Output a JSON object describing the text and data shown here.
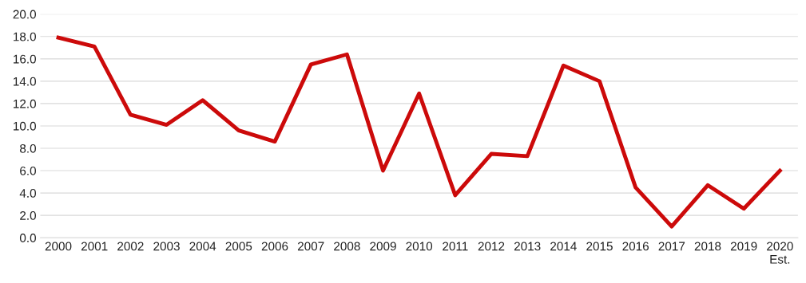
{
  "chart_data": {
    "type": "line",
    "categories": [
      "2000",
      "2001",
      "2002",
      "2003",
      "2004",
      "2005",
      "2006",
      "2007",
      "2008",
      "2009",
      "2010",
      "2011",
      "2012",
      "2013",
      "2014",
      "2015",
      "2016",
      "2017",
      "2018",
      "2019",
      "2020\nEst."
    ],
    "series": [
      {
        "color": "#cc0a0a",
        "values": [
          17.9,
          17.1,
          11.0,
          10.1,
          12.3,
          9.6,
          8.6,
          15.5,
          16.4,
          6.0,
          12.9,
          3.8,
          7.5,
          7.3,
          15.4,
          14.0,
          4.5,
          1.0,
          4.7,
          2.6,
          6.0
        ]
      }
    ],
    "ylim": [
      0,
      20
    ],
    "yticks": [
      {
        "value": 0,
        "label": "0.0"
      },
      {
        "value": 2,
        "label": "2.0"
      },
      {
        "value": 4,
        "label": "4.0"
      },
      {
        "value": 6,
        "label": "6.0"
      },
      {
        "value": 8,
        "label": "8.0"
      },
      {
        "value": 10,
        "label": "10.0"
      },
      {
        "value": 12,
        "label": "12.0"
      },
      {
        "value": 14,
        "label": "14.0"
      },
      {
        "value": 16,
        "label": "16.0"
      },
      {
        "value": 18,
        "label": "18.0"
      },
      {
        "value": 20,
        "label": "20.0"
      }
    ],
    "grid": "y",
    "line_style": "solid",
    "marker": "none"
  }
}
